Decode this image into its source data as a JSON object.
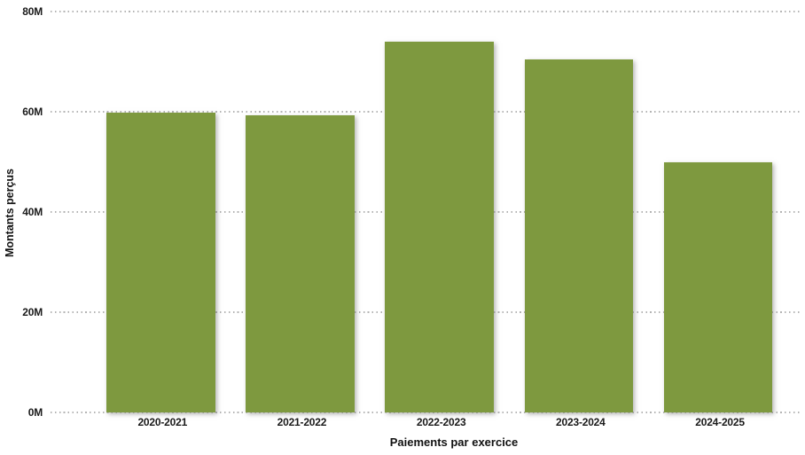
{
  "chart_data": {
    "type": "bar",
    "title": "",
    "categories": [
      "2020-2021",
      "2021-2022",
      "2022-2023",
      "2023-2024",
      "2024-2025"
    ],
    "values": [
      59.9,
      59.3,
      74.0,
      70.5,
      49.9
    ],
    "unit": "M",
    "xlabel": "Paiements par exercice",
    "ylabel": "Montants perçus",
    "ylim": [
      0,
      80
    ],
    "y_ticks": [
      {
        "value": 0,
        "label": "0M"
      },
      {
        "value": 20,
        "label": "20M"
      },
      {
        "value": 40,
        "label": "40M"
      },
      {
        "value": 60,
        "label": "60M"
      },
      {
        "value": 80,
        "label": "80M"
      }
    ],
    "grid": "horizontal-dotted",
    "legend_position": "none",
    "bar_color": "#7E993F",
    "background_color": "#FFFFFF",
    "gridline_color": "#B4B4B4",
    "text_color": "#1A1A1A"
  }
}
